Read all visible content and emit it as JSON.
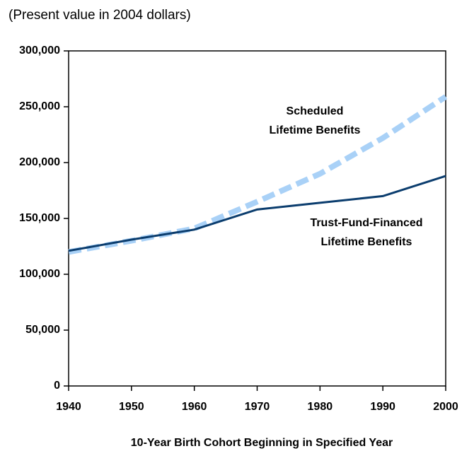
{
  "chart_data": {
    "type": "line",
    "subtitle": "(Present value in 2004 dollars)",
    "x_label": "10-Year Birth Cohort Beginning in Specified Year",
    "x": [
      1940,
      1950,
      1960,
      1970,
      1980,
      1990,
      2000
    ],
    "series": [
      {
        "name": "Scheduled Lifetime Benefits",
        "color": "#a9d1f7",
        "dashed": true,
        "values": [
          120000,
          130000,
          141000,
          165000,
          190000,
          222000,
          259000
        ]
      },
      {
        "name": "Trust-Fund-Financed Lifetime Benefits",
        "color": "#0b3d6e",
        "dashed": false,
        "values": [
          121000,
          131000,
          140000,
          158000,
          164000,
          170000,
          188000
        ]
      }
    ],
    "annotations": [
      {
        "lines": [
          "Scheduled",
          "Lifetime Benefits"
        ]
      },
      {
        "lines": [
          "Trust-Fund-Financed",
          "Lifetime Benefits"
        ]
      }
    ],
    "xlim": [
      1940,
      2000
    ],
    "xticks": [
      1940,
      1950,
      1960,
      1970,
      1980,
      1990,
      2000
    ],
    "ylim": [
      0,
      300000
    ],
    "yticks": [
      0,
      {
        "value": 50000,
        "label": "50,000"
      },
      {
        "value": 100000,
        "label": "100,000"
      },
      {
        "value": 150000,
        "label": "150,000"
      },
      {
        "value": 200000,
        "label": "200,000"
      },
      {
        "value": 250000,
        "label": "250,000"
      },
      {
        "value": 300000,
        "label": "300,000"
      }
    ]
  }
}
